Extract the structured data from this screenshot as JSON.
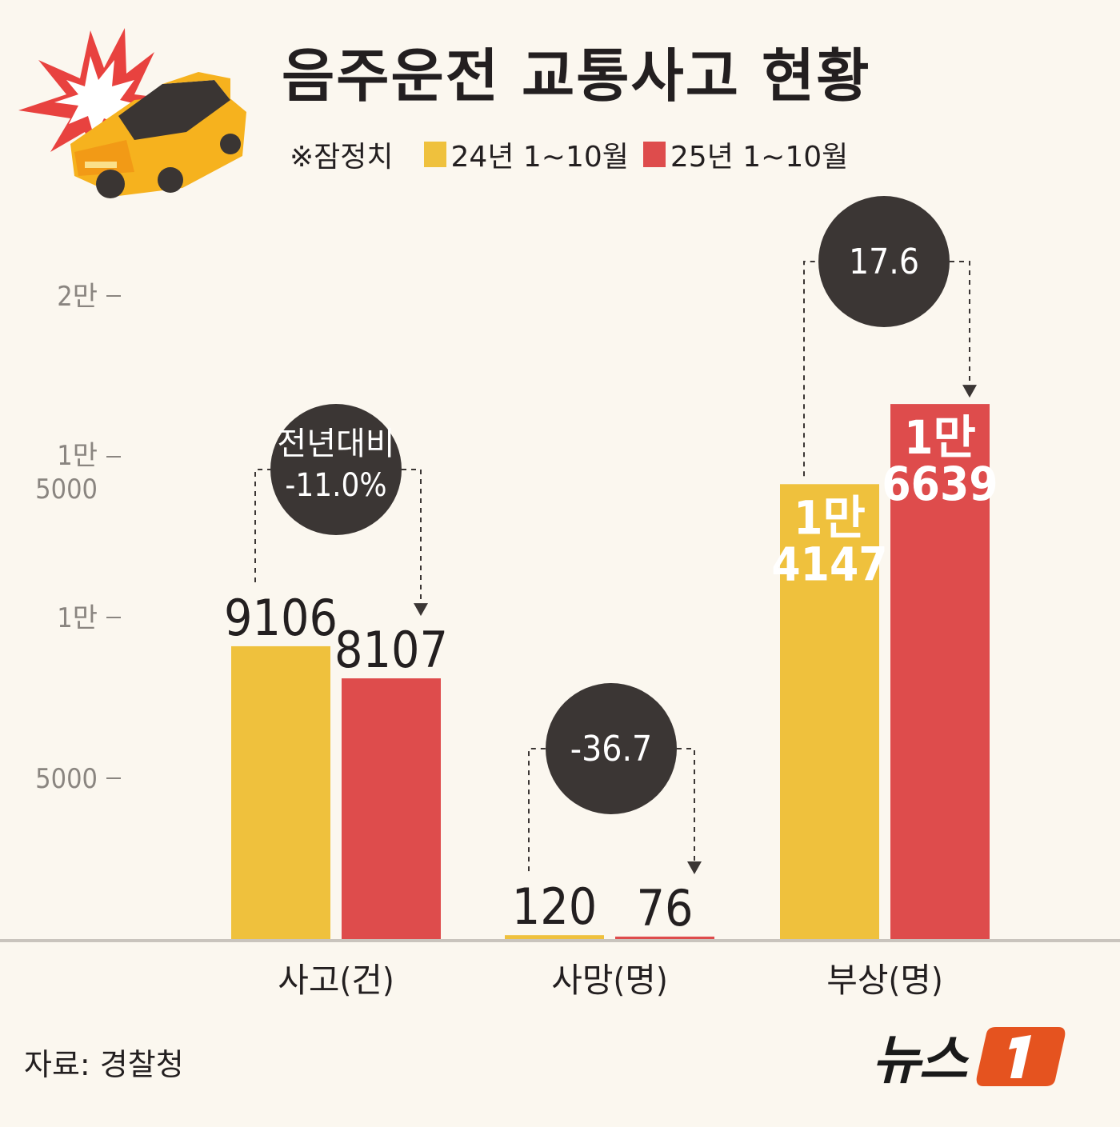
{
  "title": "음주운전 교통사고 현황",
  "legend": {
    "note": "※잠정치",
    "items": [
      {
        "label": "24년 1~10월",
        "color": "#efc13d"
      },
      {
        "label": "25년 1~10월",
        "color": "#de4c4c"
      }
    ]
  },
  "source": "자료: 경찰청",
  "logo": {
    "text": "뉴스",
    "mark": "1"
  },
  "colors": {
    "y24": "#efc13d",
    "y25": "#de4c4c",
    "bubble": "#3b3634",
    "axis": "#c9c4bd"
  },
  "chart_data": {
    "type": "bar",
    "categories": [
      "사고(건)",
      "사망(명)",
      "부상(명)"
    ],
    "series": [
      {
        "name": "24년 1~10월",
        "values": [
          9106,
          120,
          14147
        ],
        "labels": [
          "9106",
          "120",
          "1만\n4147"
        ]
      },
      {
        "name": "25년 1~10월",
        "values": [
          8107,
          76,
          16639
        ],
        "labels": [
          "8107",
          "76",
          "1만\n6639"
        ]
      }
    ],
    "changes": [
      "전년대비\n-11.0%",
      "-36.7",
      "17.6"
    ],
    "yticks": [
      {
        "value": 5000,
        "label": "5000"
      },
      {
        "value": 10000,
        "label": "1만"
      },
      {
        "value": 15000,
        "label": "1만\n5000"
      },
      {
        "value": 20000,
        "label": "2만"
      }
    ],
    "ylim": [
      0,
      20000
    ],
    "legend": "top"
  }
}
